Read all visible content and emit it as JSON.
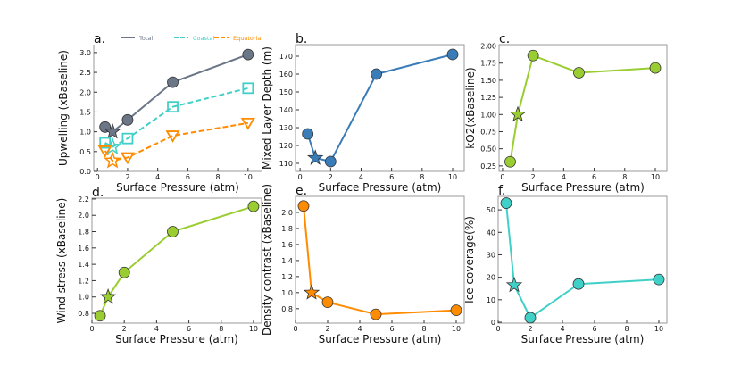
{
  "chart_data": [
    {
      "type": "line",
      "panel": "a.",
      "xlabel": "Surface Pressure (atm)",
      "ylabel": "Upwelling (xBaseline)",
      "xlim": [
        -0.25,
        10.9
      ],
      "ylim": [
        0,
        3.2
      ],
      "xticks": [
        0,
        2,
        4,
        6,
        8,
        10
      ],
      "yticks": [
        0.0,
        0.5,
        1.0,
        1.5,
        2.0,
        2.5,
        3.0
      ],
      "ytick_dec": 1,
      "frame": false,
      "legend": {
        "placement": "top",
        "entries": [
          "Total",
          "Coastal",
          "Equatorial"
        ]
      },
      "series": [
        {
          "name": "Total",
          "color": "#6b7787",
          "dash": false,
          "marker": "circle",
          "filled": true,
          "x": [
            0.5,
            1,
            2,
            5,
            10
          ],
          "y": [
            1.12,
            1.0,
            1.3,
            2.25,
            2.95
          ],
          "star_index": 1
        },
        {
          "name": "Coastal",
          "color": "#40d0c8",
          "dash": true,
          "marker": "square",
          "filled": false,
          "x": [
            0.5,
            1,
            2,
            5,
            10
          ],
          "y": [
            0.72,
            0.62,
            0.83,
            1.63,
            2.1
          ],
          "star_index": 1
        },
        {
          "name": "Equatorial",
          "color": "#ff8c00",
          "dash": true,
          "marker": "triangle-down",
          "filled": false,
          "x": [
            0.5,
            1,
            2,
            5,
            10
          ],
          "y": [
            0.52,
            0.27,
            0.35,
            0.9,
            1.22
          ],
          "star_index": 1
        }
      ]
    },
    {
      "type": "line",
      "panel": "b.",
      "xlabel": "Surface Pressure (atm)",
      "ylabel": "Mixed Layer Depth (m)",
      "xlim": [
        -0.3,
        10.76
      ],
      "ylim": [
        105.5,
        176.5
      ],
      "xticks": [
        0,
        2,
        4,
        6,
        8,
        10
      ],
      "yticks": [
        110,
        120,
        130,
        140,
        150,
        160,
        170
      ],
      "ytick_dec": 0,
      "frame": true,
      "series": [
        {
          "name": "MLD",
          "color": "#3a7cb8",
          "marker": "circle",
          "filled": true,
          "x": [
            0.5,
            1,
            2,
            5,
            10
          ],
          "y": [
            126.5,
            113,
            111,
            160,
            171
          ],
          "star_index": 1
        }
      ]
    },
    {
      "type": "line",
      "panel": "c.",
      "xlabel": "Surface Pressure (atm)",
      "ylabel": "kO2(xBaseline)",
      "xlim": [
        -0.23,
        10.76
      ],
      "ylim": [
        0.17,
        2.02
      ],
      "xticks": [
        0,
        2,
        4,
        6,
        8,
        10
      ],
      "yticks": [
        0.25,
        0.5,
        0.75,
        1.0,
        1.25,
        1.5,
        1.75,
        2.0
      ],
      "ytick_dec": 2,
      "frame": true,
      "series": [
        {
          "name": "kO2",
          "color": "#9acd32",
          "marker": "circle",
          "filled": true,
          "x": [
            0.5,
            1,
            2,
            5,
            10
          ],
          "y": [
            0.31,
            1.0,
            1.86,
            1.61,
            1.68
          ],
          "star_index": 1
        }
      ]
    },
    {
      "type": "line",
      "panel": "d.",
      "xlabel": "Surface Pressure (atm)",
      "ylabel": "Wind stress (xBaseline)",
      "xlim": [
        0,
        10.5
      ],
      "ylim": [
        0.68,
        2.21
      ],
      "xticks": [
        0,
        2,
        4,
        6,
        8,
        10
      ],
      "yticks": [
        0.8,
        1.0,
        1.2,
        1.4,
        1.6,
        1.8,
        2.0,
        2.2
      ],
      "ytick_dec": 1,
      "frame": true,
      "series": [
        {
          "name": "Wind stress",
          "color": "#9acd32",
          "marker": "circle",
          "filled": true,
          "x": [
            0.5,
            1,
            2,
            5,
            10
          ],
          "y": [
            0.77,
            1.0,
            1.3,
            1.8,
            2.11
          ],
          "star_index": 1
        }
      ]
    },
    {
      "type": "line",
      "panel": "e.",
      "xlabel": "Surface Pressure (atm)",
      "ylabel": "Density contrast (xBaseline)",
      "xlim": [
        0,
        10.5
      ],
      "ylim": [
        0.62,
        2.2
      ],
      "xticks": [
        0,
        2,
        4,
        6,
        8,
        10
      ],
      "yticks": [
        0.8,
        1.0,
        1.2,
        1.4,
        1.6,
        1.8,
        2.0
      ],
      "ytick_dec": 1,
      "frame": true,
      "series": [
        {
          "name": "Density contrast",
          "color": "#ff8c00",
          "marker": "circle",
          "filled": true,
          "x": [
            0.5,
            1,
            2,
            5,
            10
          ],
          "y": [
            2.08,
            1.0,
            0.88,
            0.73,
            0.78
          ],
          "star_index": 1
        }
      ]
    },
    {
      "type": "line",
      "panel": "f.",
      "xlabel": "Surface Pressure (atm)",
      "ylabel": "Ice coverage(%)",
      "xlim": [
        0,
        10.5
      ],
      "ylim": [
        -0.4,
        56
      ],
      "xticks": [
        0,
        2,
        4,
        6,
        8,
        10
      ],
      "yticks": [
        0,
        10,
        20,
        30,
        40,
        50
      ],
      "ytick_dec": 0,
      "frame": true,
      "series": [
        {
          "name": "Ice coverage",
          "color": "#40d0c8",
          "marker": "circle",
          "filled": true,
          "x": [
            0.5,
            1,
            2,
            5,
            10
          ],
          "y": [
            53,
            16.5,
            2,
            17,
            19
          ],
          "star_index": 1
        }
      ]
    }
  ]
}
